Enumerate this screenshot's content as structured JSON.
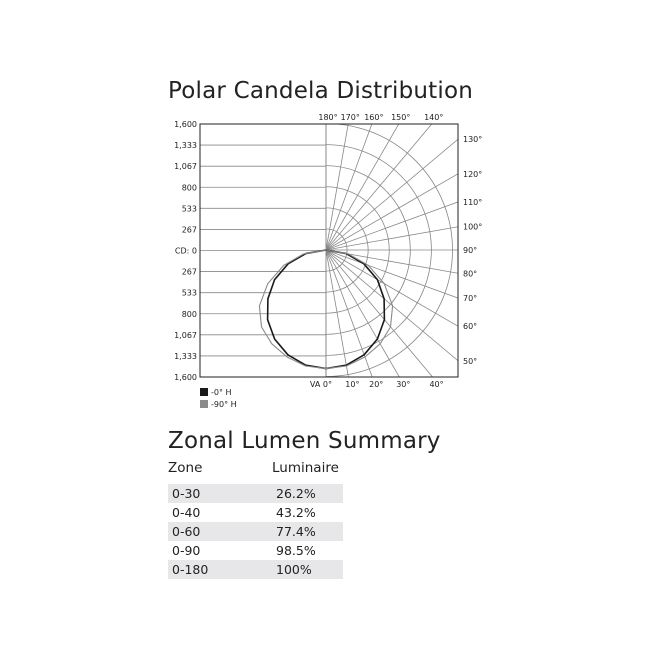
{
  "chart_data": {
    "type": "polar",
    "title": "Polar Candela Distribution",
    "radial_axis": {
      "unit_label": "CD: 0",
      "ticks": [
        "1,600",
        "1,333",
        "1,067",
        "800",
        "533",
        "267",
        "CD: 0",
        "267",
        "533",
        "800",
        "1,067",
        "1,333",
        "1,600"
      ],
      "rings": [
        267,
        533,
        800,
        1067,
        1333,
        1600
      ],
      "max": 1600
    },
    "angle_labels": {
      "top": [
        "180°",
        "170°",
        "160°",
        "150°",
        "140°"
      ],
      "right": [
        "130°",
        "120°",
        "110°",
        "100°",
        "90°",
        "80°",
        "70°",
        "60°",
        "50°"
      ],
      "bottom": [
        "VA 0°",
        "10°",
        "20°",
        "30°",
        "40°"
      ]
    },
    "angles": [
      0,
      10,
      20,
      30,
      40,
      50,
      60,
      70,
      80,
      90
    ],
    "series": [
      {
        "name": "-0° H",
        "color": "#1a1a1a",
        "values": [
          1500,
          1480,
          1410,
          1300,
          1150,
          960,
          750,
          510,
          260,
          0
        ]
      },
      {
        "name": "-90° H",
        "color": "#8a8a8a",
        "values": [
          1500,
          1490,
          1440,
          1370,
          1270,
          1100,
          850,
          570,
          290,
          0
        ]
      }
    ],
    "grid": true,
    "legend": "bottom-left"
  },
  "zonal": {
    "title": "Zonal Lumen Summary",
    "headers": [
      "Zone",
      "Luminaire"
    ],
    "rows": [
      {
        "zone": "0-30",
        "lum": "26.2%"
      },
      {
        "zone": "0-40",
        "lum": "43.2%"
      },
      {
        "zone": "0-60",
        "lum": "77.4%"
      },
      {
        "zone": "0-90",
        "lum": "98.5%"
      },
      {
        "zone": "0-180",
        "lum": "100%"
      }
    ]
  }
}
